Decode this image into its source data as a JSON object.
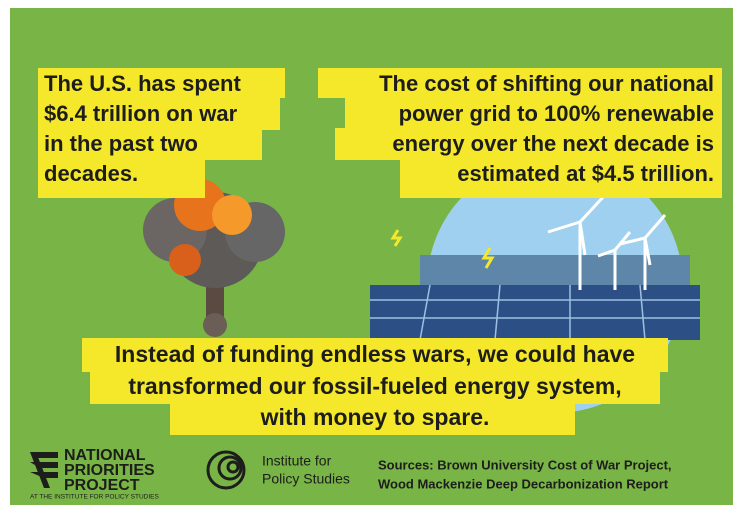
{
  "left_bubble": {
    "lines": [
      "The U.S. has spent",
      "$6.4 trillion on war",
      "in the past two",
      "decades."
    ]
  },
  "right_bubble": {
    "lines": [
      "The cost of shifting our national",
      "power grid to 100% renewable",
      "energy over the next decade is",
      "estimated at $4.5 trillion."
    ]
  },
  "bottom_bubble": {
    "lines": [
      "Instead of funding endless wars, we could have",
      "transformed our fossil-fueled energy system,",
      "with money to spare."
    ]
  },
  "footer": {
    "npp_logo": {
      "lines": [
        "NATIONAL",
        "PRIORITIES",
        "PROJECT"
      ],
      "tagline": "AT THE INSTITUTE FOR POLICY STUDIES"
    },
    "ips_logo": {
      "lines": [
        "Institute for",
        "Policy Studies"
      ]
    },
    "sources": {
      "lines": [
        "Sources: Brown University Cost of War Project,",
        "Wood Mackenzie Deep Decarbonization Report"
      ]
    }
  }
}
